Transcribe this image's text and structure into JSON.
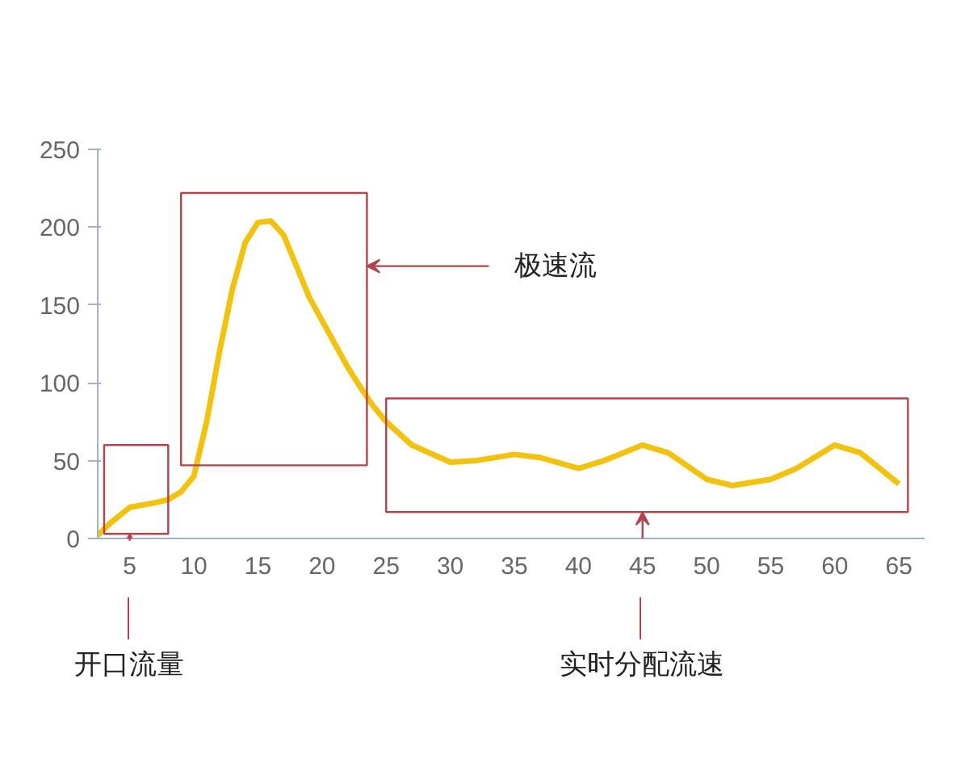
{
  "chart_data": {
    "type": "line",
    "xlim": [
      2.5,
      67
    ],
    "ylim": [
      0,
      250
    ],
    "xticks": [
      5,
      10,
      15,
      20,
      25,
      30,
      35,
      40,
      45,
      50,
      55,
      60,
      65
    ],
    "yticks": [
      0,
      50,
      100,
      150,
      200,
      250
    ],
    "grid": false,
    "marker": "none",
    "line_style": "solid",
    "series": [
      {
        "color": "#f2c20f",
        "x": [
          2.5,
          3.5,
          5,
          7,
          8,
          9,
          10,
          11,
          12,
          13,
          14,
          15,
          16,
          17,
          18,
          19,
          20,
          21,
          22,
          23,
          24,
          25,
          27,
          30,
          32,
          35,
          37,
          40,
          42,
          45,
          47,
          50,
          52,
          55,
          57,
          60,
          62,
          65
        ],
        "values": [
          2,
          10,
          20,
          23,
          25,
          30,
          40,
          75,
          120,
          160,
          190,
          203,
          204,
          195,
          175,
          155,
          140,
          125,
          110,
          97,
          85,
          75,
          60,
          49,
          50,
          54,
          52,
          45,
          50,
          60,
          55,
          38,
          34,
          38,
          45,
          60,
          55,
          35
        ]
      }
    ],
    "annotations": [
      "开口流量",
      "极速流",
      "实时分配流速"
    ]
  }
}
